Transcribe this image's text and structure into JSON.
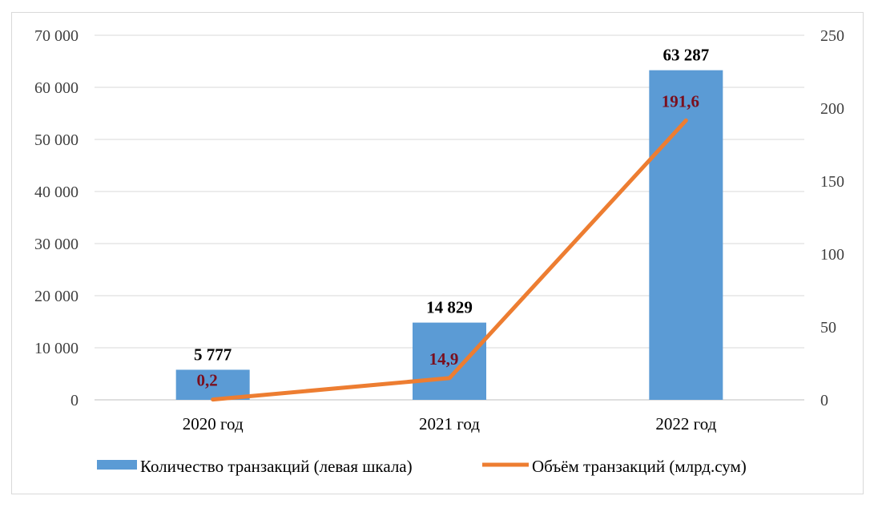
{
  "chart_data": {
    "type": "bar",
    "categories": [
      "2020 год",
      "2021 год",
      "2022 год"
    ],
    "series": [
      {
        "name": "Количество транзакций (левая шкала)",
        "type": "bar",
        "axis": "left",
        "values": [
          5777,
          14829,
          63287
        ],
        "labels": [
          "5 777",
          "14 829",
          "63 287"
        ],
        "color": "#5b9bd5"
      },
      {
        "name": "Объём транзакций (млрд.сум)",
        "type": "line",
        "axis": "right",
        "values": [
          0.2,
          14.9,
          191.6
        ],
        "labels": [
          "0,2",
          "14,9",
          "191,6"
        ],
        "color": "#ed7d31"
      }
    ],
    "ylim_left": [
      0,
      70000
    ],
    "ylim_right": [
      0,
      250
    ],
    "yticks_left": [
      0,
      10000,
      20000,
      30000,
      40000,
      50000,
      60000,
      70000
    ],
    "yticks_left_labels": [
      "0",
      "10 000",
      "20 000",
      "30 000",
      "40 000",
      "50 000",
      "60 000",
      "70 000"
    ],
    "yticks_right": [
      0,
      50,
      100,
      150,
      200,
      250
    ],
    "yticks_right_labels": [
      "0",
      "50",
      "100",
      "150",
      "200",
      "250"
    ],
    "grid": true,
    "legend": "bottom",
    "title": "",
    "xlabel": "",
    "ylabel": ""
  }
}
